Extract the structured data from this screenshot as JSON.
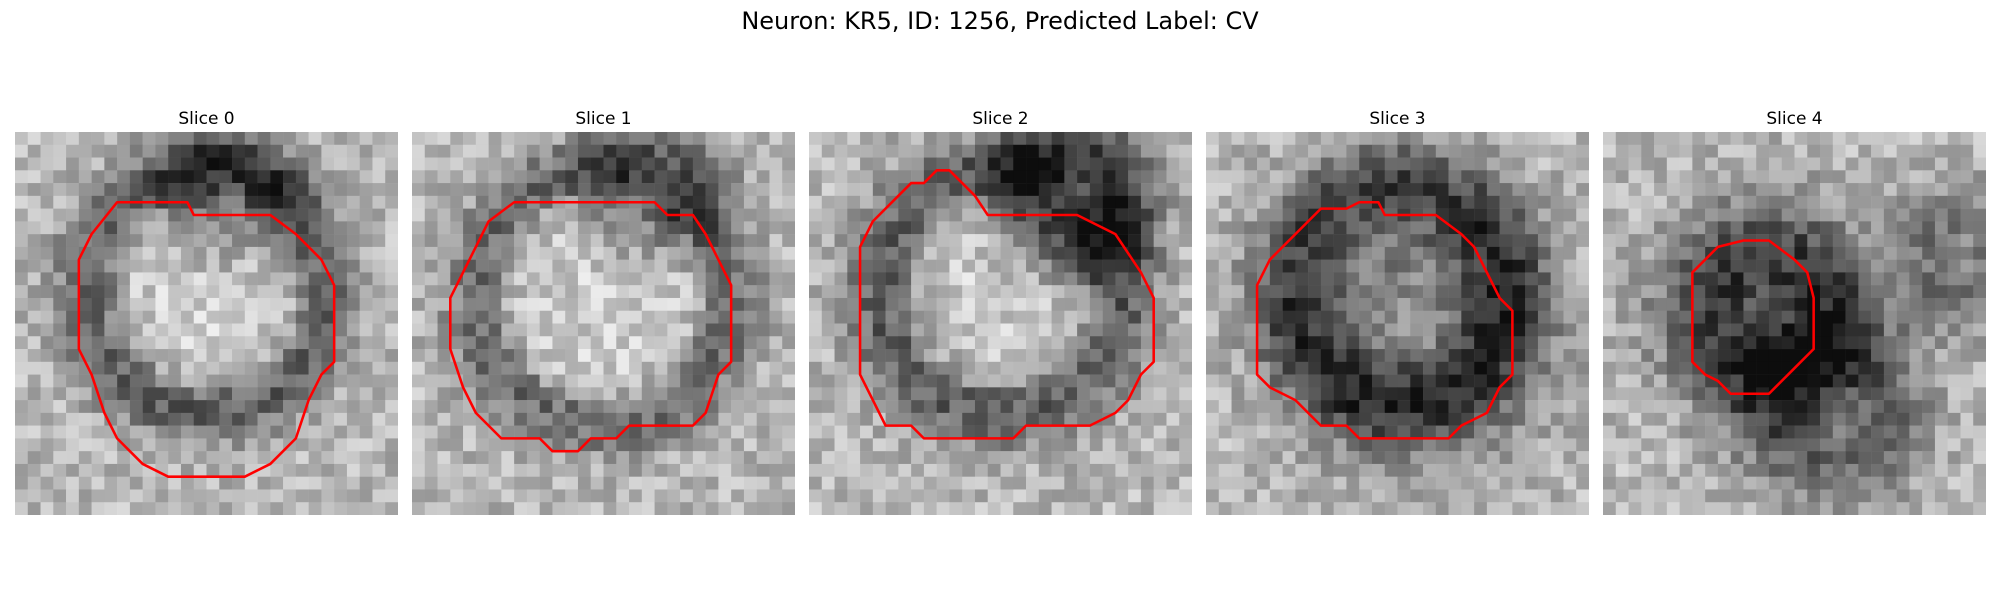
{
  "figure": {
    "title": "Neuron: KR5, ID: 1256, Predicted Label: CV",
    "contour_color": "#ff0000"
  },
  "panels": [
    {
      "title": "Slice 0",
      "image_kind": "grayscale-microscopy-patch",
      "overlay": "red-contour-outline"
    },
    {
      "title": "Slice 1",
      "image_kind": "grayscale-microscopy-patch",
      "overlay": "red-contour-outline"
    },
    {
      "title": "Slice 2",
      "image_kind": "grayscale-microscopy-patch",
      "overlay": "red-contour-outline"
    },
    {
      "title": "Slice 3",
      "image_kind": "grayscale-microscopy-patch",
      "overlay": "red-contour-outline"
    },
    {
      "title": "Slice 4",
      "image_kind": "grayscale-microscopy-patch",
      "overlay": "red-contour-outline"
    }
  ]
}
